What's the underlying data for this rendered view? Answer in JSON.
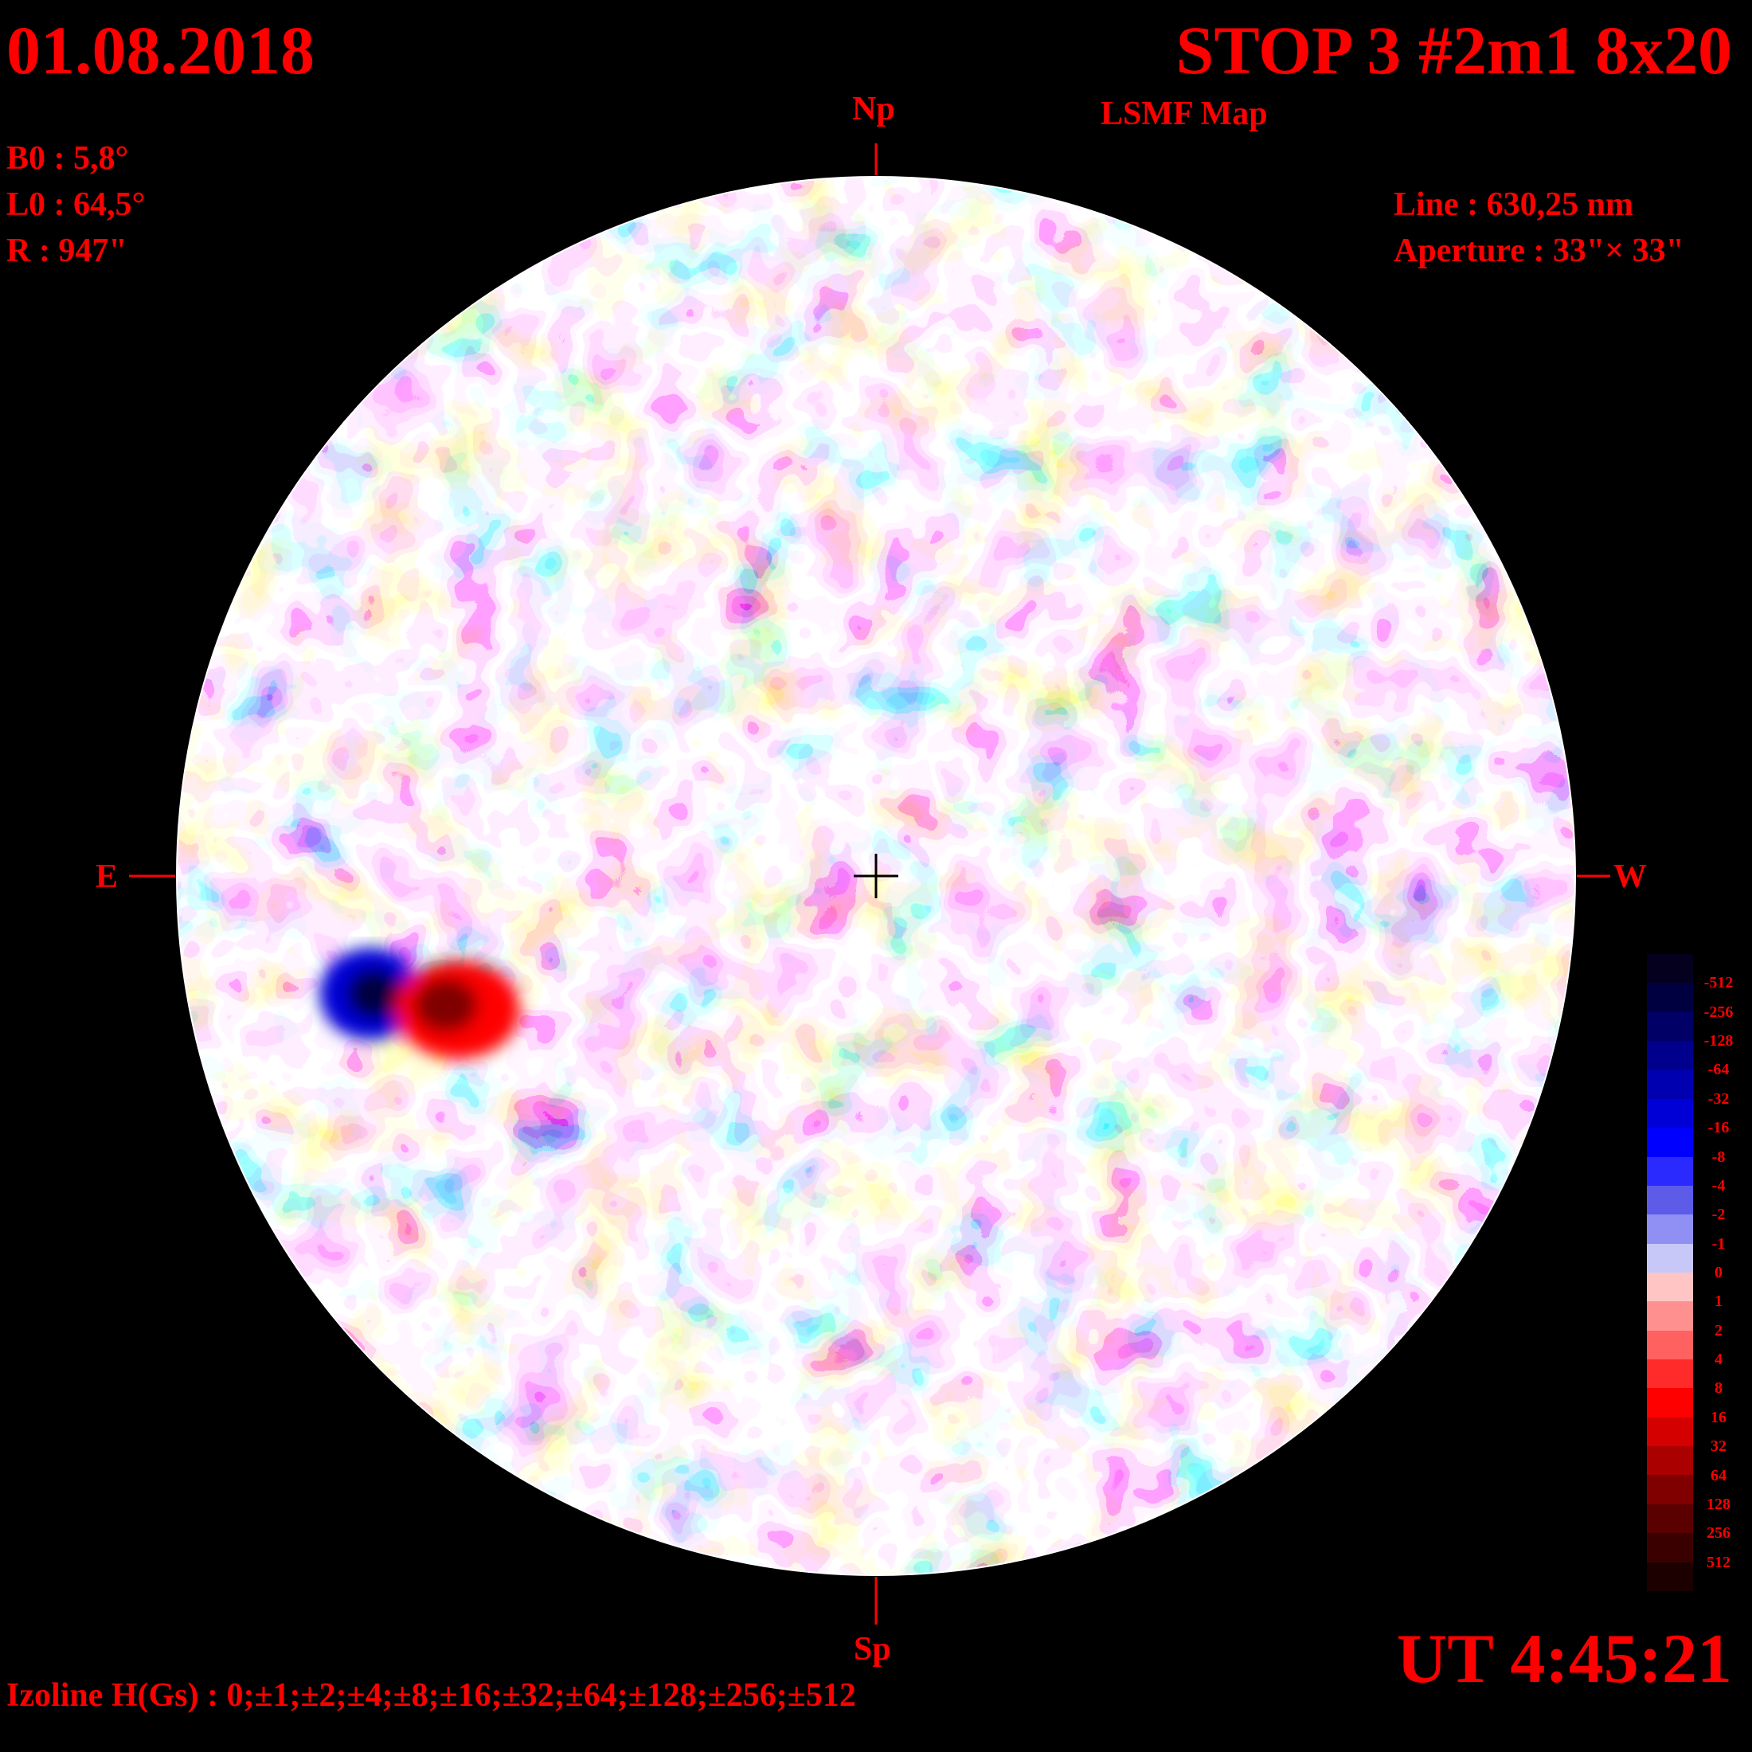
{
  "header": {
    "date": "01.08.2018",
    "title": "STOP 3 #2m1 8x20",
    "subtitle": "LSMF  Map"
  },
  "params": {
    "b0": "B0 : 5,8°",
    "l0": "L0 : 64,5°",
    "r": "R  : 947\""
  },
  "instrument": {
    "line": "Line :  630,25 nm",
    "aperture": "Aperture : 33\"× 33\""
  },
  "directions": {
    "north": "Np",
    "south": "Sp",
    "east": "E",
    "west": "W"
  },
  "time": "UT 4:45:21",
  "isolines": "Izoline H(Gs) : 0;±1;±2;±4;±8;±16;±32;±64;±128;±256;±512",
  "colors": {
    "positive": "#ff0000",
    "negative": "#0000ff",
    "background": "#000000",
    "contour": "#ffffff"
  },
  "color_scale": {
    "labels": [
      "-512",
      "-256",
      "-128",
      "-64",
      "-32",
      "-16",
      "-8",
      "-4",
      "-2",
      "-1",
      "0",
      "1",
      "2",
      "4",
      "8",
      "16",
      "32",
      "64",
      "128",
      "256",
      "512"
    ],
    "colors": [
      "#04001e",
      "#000040",
      "#000066",
      "#00008c",
      "#0000b0",
      "#0000d6",
      "#0000ff",
      "#2a2aff",
      "#5c5ce8",
      "#9090f4",
      "#c8c8f8",
      "#ffc4c4",
      "#ff9090",
      "#ff6060",
      "#ff2a2a",
      "#ff0000",
      "#d40000",
      "#aa0000",
      "#800000",
      "#5a0000",
      "#3a0000",
      "#1c0000"
    ]
  }
}
